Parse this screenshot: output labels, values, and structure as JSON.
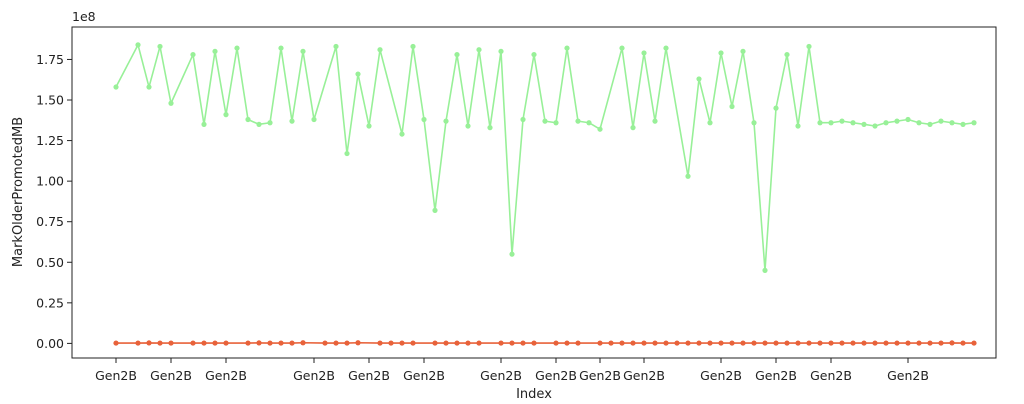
{
  "chart_data": {
    "type": "line",
    "title": "",
    "xlabel": "Index",
    "ylabel": "MarkOlderPromotedMB",
    "y_offset_label": "1e8",
    "y_multiplier": 100000000,
    "ylim": [
      -0.09,
      1.95
    ],
    "y_ticks": [
      0.0,
      0.25,
      0.5,
      0.75,
      1.0,
      1.25,
      1.5,
      1.75
    ],
    "y_tick_labels": [
      "0.00",
      "0.25",
      "0.50",
      "0.75",
      "1.00",
      "1.25",
      "1.50",
      "1.75"
    ],
    "xlim": [
      -4,
      80
    ],
    "x_ticks": [
      0,
      5,
      10,
      18,
      23,
      28,
      35,
      40,
      44,
      48,
      55,
      60,
      65,
      72
    ],
    "x_tick_labels": [
      "Gen2B",
      "Gen2B",
      "Gen2B",
      "Gen2B",
      "Gen2B",
      "Gen2B",
      "Gen2B",
      "Gen2B",
      "Gen2B",
      "Gen2B",
      "Gen2B",
      "Gen2B",
      "Gen2B",
      "Gen2B"
    ],
    "grid": false,
    "legend": "none",
    "series": [
      {
        "color": "#98f098",
        "x": [
          0,
          2,
          3,
          4,
          5,
          7,
          8,
          9,
          10,
          11,
          12,
          13,
          14,
          15,
          16,
          17,
          18,
          20,
          21,
          22,
          23,
          24,
          26,
          27,
          28,
          29,
          30,
          31,
          32,
          33,
          34,
          35,
          36,
          37,
          38,
          39,
          40,
          41,
          42,
          43,
          44,
          46,
          47,
          48,
          49,
          50,
          52,
          53,
          54,
          55,
          56,
          57,
          58,
          59,
          60,
          61,
          62,
          63,
          64,
          65,
          66,
          67,
          68,
          69,
          70,
          71,
          72,
          73,
          74,
          75,
          76,
          77,
          78
        ],
        "y": [
          1.58,
          1.84,
          1.58,
          1.83,
          1.48,
          1.78,
          1.35,
          1.8,
          1.41,
          1.82,
          1.38,
          1.35,
          1.36,
          1.82,
          1.37,
          1.8,
          1.38,
          1.83,
          1.17,
          1.66,
          1.34,
          1.81,
          1.29,
          1.83,
          1.38,
          0.82,
          1.37,
          1.78,
          1.34,
          1.81,
          1.33,
          1.8,
          0.55,
          1.38,
          1.78,
          1.37,
          1.36,
          1.82,
          1.37,
          1.36,
          1.32,
          1.82,
          1.33,
          1.79,
          1.37,
          1.82,
          1.03,
          1.63,
          1.36,
          1.79,
          1.46,
          1.8,
          1.36,
          0.45,
          1.45,
          1.78,
          1.34,
          1.83,
          1.36,
          1.36,
          1.37,
          1.36,
          1.35,
          1.34,
          1.36,
          1.37,
          1.38,
          1.36,
          1.35,
          1.37,
          1.36,
          1.35,
          1.36
        ]
      },
      {
        "color": "#e8623a",
        "x": [
          0,
          2,
          3,
          4,
          5,
          7,
          8,
          9,
          10,
          12,
          13,
          14,
          15,
          16,
          17,
          19,
          20,
          21,
          22,
          24,
          25,
          26,
          27,
          29,
          30,
          31,
          32,
          33,
          35,
          36,
          37,
          38,
          40,
          41,
          42,
          44,
          45,
          46,
          47,
          48,
          49,
          50,
          51,
          52,
          53,
          54,
          55,
          56,
          57,
          58,
          59,
          60,
          61,
          62,
          63,
          64,
          65,
          66,
          67,
          68,
          69,
          70,
          71,
          72,
          73,
          74,
          75,
          76,
          77,
          78
        ],
        "y": [
          0.002,
          0.002,
          0.003,
          0.002,
          0.002,
          0.002,
          0.002,
          0.002,
          0.002,
          0.002,
          0.003,
          0.002,
          0.002,
          0.002,
          0.004,
          0.002,
          0.002,
          0.002,
          0.004,
          0.002,
          0.002,
          0.002,
          0.002,
          0.002,
          0.002,
          0.002,
          0.002,
          0.002,
          0.002,
          0.002,
          0.002,
          0.002,
          0.002,
          0.002,
          0.002,
          0.002,
          0.002,
          0.002,
          0.002,
          0.002,
          0.002,
          0.002,
          0.002,
          0.002,
          0.002,
          0.002,
          0.002,
          0.002,
          0.002,
          0.002,
          0.002,
          0.002,
          0.002,
          0.002,
          0.002,
          0.002,
          0.002,
          0.002,
          0.002,
          0.002,
          0.002,
          0.002,
          0.002,
          0.002,
          0.002,
          0.002,
          0.002,
          0.003,
          0.002,
          0.002
        ]
      }
    ]
  }
}
